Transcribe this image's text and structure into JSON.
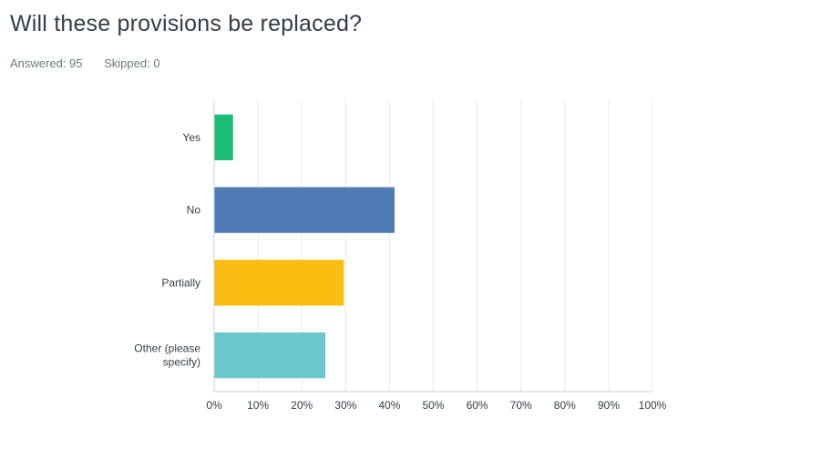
{
  "header": {
    "title": "Will these provisions be replaced?",
    "answered": "Answered: 95",
    "skipped": "Skipped: 0"
  },
  "chart_data": {
    "type": "bar",
    "orientation": "horizontal",
    "categories": [
      [
        "Yes"
      ],
      [
        "No"
      ],
      [
        "Partially"
      ],
      [
        "Other (please",
        "specify)"
      ]
    ],
    "values": [
      4.21,
      41.05,
      29.47,
      25.26
    ],
    "colors": [
      "#1abf73",
      "#507cb6",
      "#f9be11",
      "#6bc8cd"
    ],
    "xlim": [
      0,
      100
    ],
    "xticks": [
      "0%",
      "10%",
      "20%",
      "30%",
      "40%",
      "50%",
      "60%",
      "70%",
      "80%",
      "90%",
      "100%"
    ],
    "grid": true,
    "legend": "none"
  }
}
